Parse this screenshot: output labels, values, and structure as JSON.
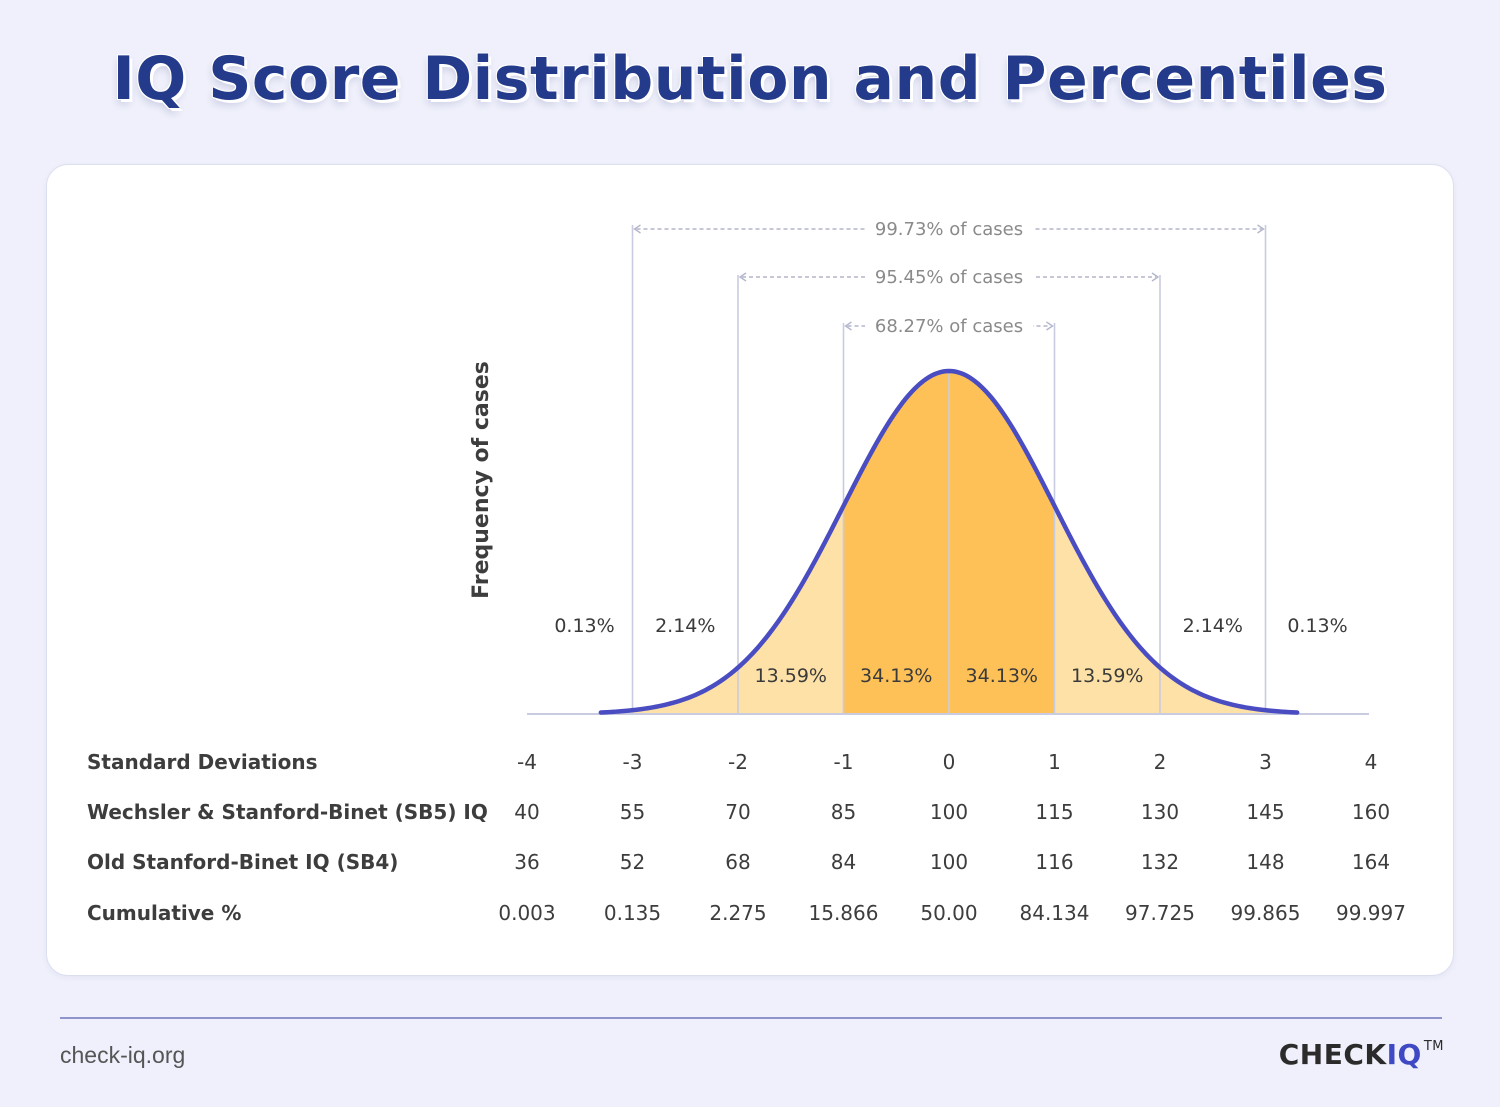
{
  "title": "IQ Score Distribution and Percentiles",
  "colors": {
    "background": "#eff0fb",
    "title": "#243a8a",
    "curve": "#4a4cc1",
    "inner_fill": "#fdc157",
    "outer_fill": "#fde1a7",
    "guide_lines": "#c9cce0",
    "brand_accent": "#3f49c4"
  },
  "chart_data": {
    "type": "area",
    "distribution": "normal",
    "ylabel": "Frequency of cases",
    "x_range": [
      -4,
      4
    ],
    "x_ticks": [
      "-4",
      "-3",
      "-2",
      "-1",
      "0",
      "1",
      "2",
      "3",
      "4"
    ],
    "segment_percentages": [
      {
        "from": -4,
        "to": -3,
        "label": "0.13%"
      },
      {
        "from": -3,
        "to": -2,
        "label": "2.14%"
      },
      {
        "from": -2,
        "to": -1,
        "label": "13.59%"
      },
      {
        "from": -1,
        "to": 0,
        "label": "34.13%"
      },
      {
        "from": 0,
        "to": 1,
        "label": "34.13%"
      },
      {
        "from": 1,
        "to": 2,
        "label": "13.59%"
      },
      {
        "from": 2,
        "to": 3,
        "label": "2.14%"
      },
      {
        "from": 3,
        "to": 4,
        "label": "0.13%"
      }
    ],
    "ranges": [
      {
        "from": -3,
        "to": 3,
        "label": "99.73% of cases"
      },
      {
        "from": -2,
        "to": 2,
        "label": "95.45% of cases"
      },
      {
        "from": -1,
        "to": 1,
        "label": "68.27% of cases"
      }
    ],
    "table": [
      {
        "label": "Standard Deviations",
        "values": [
          "-4",
          "-3",
          "-2",
          "-1",
          "0",
          "1",
          "2",
          "3",
          "4"
        ]
      },
      {
        "label": "Wechsler & Stanford-Binet (SB5) IQ",
        "values": [
          "40",
          "55",
          "70",
          "85",
          "100",
          "115",
          "130",
          "145",
          "160"
        ]
      },
      {
        "label": "Old Stanford-Binet IQ (SB4)",
        "values": [
          "36",
          "52",
          "68",
          "84",
          "100",
          "116",
          "132",
          "148",
          "164"
        ]
      },
      {
        "label": "Cumulative %",
        "values": [
          "0.003",
          "0.135",
          "2.275",
          "15.866",
          "50.00",
          "84.134",
          "97.725",
          "99.865",
          "99.997"
        ]
      }
    ]
  },
  "footer": {
    "url": "check-iq.org",
    "brand_prefix": "CHECK",
    "brand_suffix": "IQ",
    "brand_tm": "TM"
  }
}
